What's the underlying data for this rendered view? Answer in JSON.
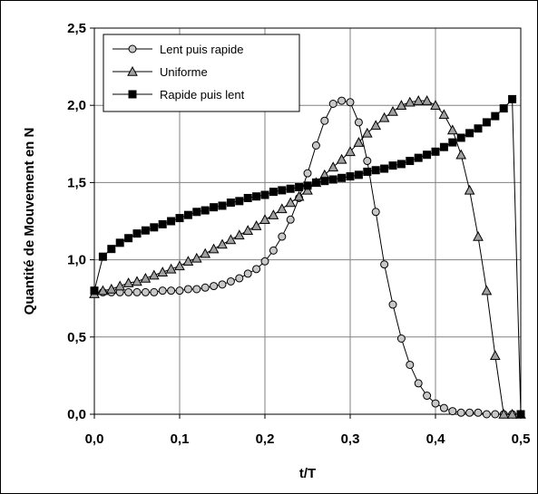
{
  "chart_data": {
    "type": "line",
    "xlabel": "t/T",
    "ylabel": "Quantité de Mouvement en N",
    "xlim": [
      0,
      0.5
    ],
    "ylim": [
      0,
      2.5
    ],
    "x_ticks": [
      0,
      0.1,
      0.2,
      0.3,
      0.4,
      0.5
    ],
    "y_ticks": [
      0,
      0.5,
      1.0,
      1.5,
      2.0,
      2.5
    ],
    "x_tick_labels": [
      "0,0",
      "0,1",
      "0,2",
      "0,3",
      "0,4",
      "0,5"
    ],
    "y_tick_labels": [
      "0,0",
      "0,5",
      "1,0",
      "1,5",
      "2,0",
      "2,5"
    ],
    "grid": true,
    "legend_position": "top-left",
    "series": [
      {
        "name": "Lent puis rapide",
        "marker": "circle",
        "marker_fill": "#c8c8c8",
        "x": [
          0,
          0.01,
          0.02,
          0.03,
          0.04,
          0.05,
          0.06,
          0.07,
          0.08,
          0.09,
          0.1,
          0.11,
          0.12,
          0.13,
          0.14,
          0.15,
          0.16,
          0.17,
          0.18,
          0.19,
          0.2,
          0.21,
          0.22,
          0.23,
          0.24,
          0.25,
          0.26,
          0.27,
          0.28,
          0.29,
          0.3,
          0.31,
          0.32,
          0.33,
          0.34,
          0.35,
          0.36,
          0.37,
          0.38,
          0.39,
          0.4,
          0.41,
          0.42,
          0.43,
          0.44,
          0.45,
          0.46,
          0.47,
          0.48,
          0.49,
          0.5
        ],
        "y": [
          0.79,
          0.79,
          0.79,
          0.79,
          0.79,
          0.79,
          0.79,
          0.79,
          0.8,
          0.8,
          0.8,
          0.81,
          0.81,
          0.82,
          0.83,
          0.84,
          0.86,
          0.88,
          0.91,
          0.94,
          0.99,
          1.06,
          1.15,
          1.26,
          1.4,
          1.56,
          1.74,
          1.9,
          2.01,
          2.03,
          2.02,
          1.89,
          1.64,
          1.31,
          0.97,
          0.71,
          0.49,
          0.32,
          0.2,
          0.12,
          0.07,
          0.04,
          0.02,
          0.01,
          0.01,
          0.01,
          0.0,
          0.0,
          0.0,
          0.0,
          0.0
        ]
      },
      {
        "name": "Uniforme",
        "marker": "triangle",
        "marker_fill": "#a0a0a0",
        "x": [
          0,
          0.01,
          0.02,
          0.03,
          0.04,
          0.05,
          0.06,
          0.07,
          0.08,
          0.09,
          0.1,
          0.11,
          0.12,
          0.13,
          0.14,
          0.15,
          0.16,
          0.17,
          0.18,
          0.19,
          0.2,
          0.21,
          0.22,
          0.23,
          0.24,
          0.25,
          0.26,
          0.27,
          0.28,
          0.29,
          0.3,
          0.31,
          0.32,
          0.33,
          0.34,
          0.35,
          0.36,
          0.37,
          0.38,
          0.39,
          0.4,
          0.41,
          0.42,
          0.43,
          0.44,
          0.45,
          0.46,
          0.47,
          0.48,
          0.49,
          0.5
        ],
        "y": [
          0.78,
          0.8,
          0.81,
          0.83,
          0.85,
          0.86,
          0.88,
          0.9,
          0.92,
          0.94,
          0.96,
          0.99,
          1.01,
          1.04,
          1.07,
          1.1,
          1.13,
          1.16,
          1.19,
          1.22,
          1.26,
          1.29,
          1.33,
          1.37,
          1.41,
          1.45,
          1.5,
          1.55,
          1.6,
          1.65,
          1.7,
          1.76,
          1.82,
          1.87,
          1.92,
          1.96,
          2.0,
          2.02,
          2.03,
          2.03,
          2.0,
          1.94,
          1.84,
          1.68,
          1.45,
          1.15,
          0.8,
          0.38,
          0.0,
          0.0,
          0.0
        ]
      },
      {
        "name": "Rapide puis lent",
        "marker": "square",
        "marker_fill": "#000000",
        "x": [
          0,
          0.01,
          0.02,
          0.03,
          0.04,
          0.05,
          0.06,
          0.07,
          0.08,
          0.09,
          0.1,
          0.11,
          0.12,
          0.13,
          0.14,
          0.15,
          0.16,
          0.17,
          0.18,
          0.19,
          0.2,
          0.21,
          0.22,
          0.23,
          0.24,
          0.25,
          0.26,
          0.27,
          0.28,
          0.29,
          0.3,
          0.31,
          0.32,
          0.33,
          0.34,
          0.35,
          0.36,
          0.37,
          0.38,
          0.39,
          0.4,
          0.41,
          0.42,
          0.43,
          0.44,
          0.45,
          0.46,
          0.47,
          0.48,
          0.49,
          0.5
        ],
        "y": [
          0.8,
          1.02,
          1.07,
          1.11,
          1.14,
          1.17,
          1.19,
          1.21,
          1.23,
          1.25,
          1.27,
          1.29,
          1.31,
          1.32,
          1.34,
          1.35,
          1.37,
          1.38,
          1.4,
          1.41,
          1.42,
          1.44,
          1.45,
          1.46,
          1.47,
          1.48,
          1.5,
          1.51,
          1.52,
          1.53,
          1.54,
          1.55,
          1.57,
          1.58,
          1.59,
          1.61,
          1.62,
          1.64,
          1.66,
          1.68,
          1.7,
          1.73,
          1.76,
          1.79,
          1.82,
          1.85,
          1.89,
          1.93,
          1.98,
          2.04,
          0.0
        ]
      }
    ]
  }
}
